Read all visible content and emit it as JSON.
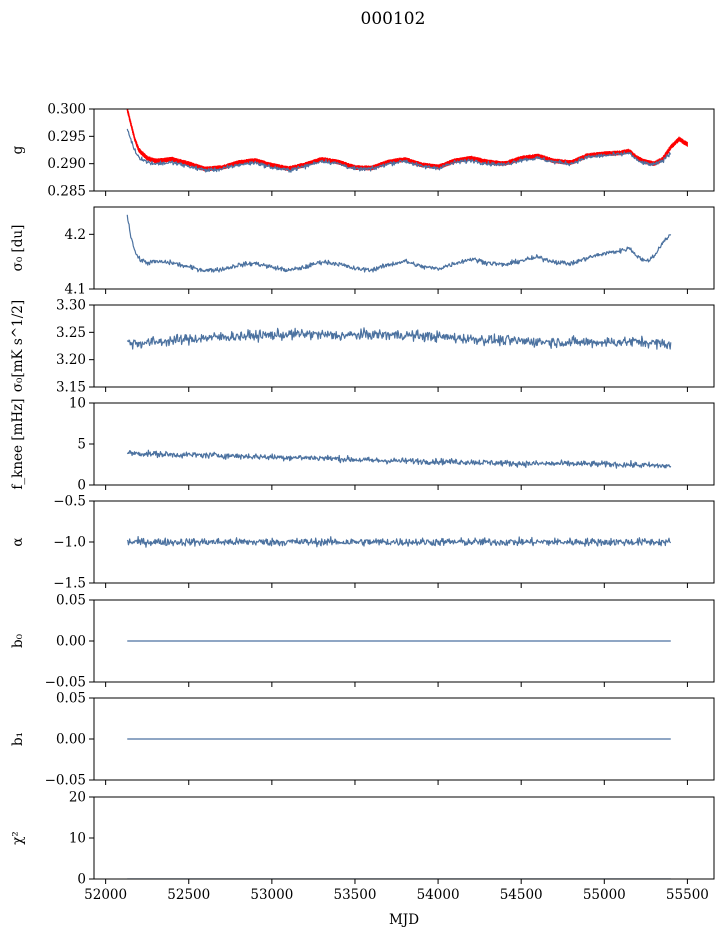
{
  "figure": {
    "title": "000102",
    "xlabel": "MJD",
    "colors": {
      "series": "#4c72a0",
      "raw": "#ff0000",
      "axes": "#000000"
    }
  },
  "chart_data": [
    {
      "type": "line",
      "ylabel": "g",
      "xlim": [
        51930,
        55660
      ],
      "ylim": [
        0.285,
        0.3
      ],
      "yticks": [
        "0.285",
        "0.290",
        "0.295",
        "0.300"
      ],
      "grid": false,
      "series": [
        {
          "color": "#ff0000",
          "style": "band",
          "x": [
            52130,
            52150,
            52175,
            52200,
            52250,
            52300,
            52400,
            52500,
            52600,
            52700,
            52800,
            52900,
            53000,
            53100,
            53200,
            53300,
            53400,
            53500,
            53600,
            53700,
            53800,
            53900,
            54000,
            54100,
            54200,
            54300,
            54400,
            54500,
            54600,
            54700,
            54800,
            54900,
            55000,
            55100,
            55150,
            55200,
            55250,
            55300,
            55350,
            55400,
            55450,
            55500
          ],
          "y": [
            0.3,
            0.2975,
            0.2945,
            0.2925,
            0.291,
            0.2905,
            0.2908,
            0.29,
            0.289,
            0.2893,
            0.2902,
            0.2906,
            0.2897,
            0.2891,
            0.2898,
            0.2908,
            0.2903,
            0.2893,
            0.2892,
            0.2903,
            0.2908,
            0.2898,
            0.2894,
            0.2905,
            0.291,
            0.2903,
            0.29,
            0.291,
            0.2914,
            0.2905,
            0.2902,
            0.2915,
            0.2918,
            0.292,
            0.2923,
            0.291,
            0.2903,
            0.29,
            0.2908,
            0.293,
            0.2945,
            0.2935
          ]
        },
        {
          "color": "#4c72a0",
          "style": "noisy",
          "noise": 0.00035,
          "x": [
            52130,
            52150,
            52175,
            52200,
            52250,
            52300,
            52400,
            52500,
            52600,
            52700,
            52800,
            52900,
            53000,
            53100,
            53200,
            53300,
            53400,
            53500,
            53600,
            53700,
            53800,
            53900,
            54000,
            54100,
            54200,
            54300,
            54400,
            54500,
            54600,
            54700,
            54800,
            54900,
            55000,
            55100,
            55150,
            55200,
            55250,
            55300,
            55350,
            55400
          ],
          "y": [
            0.2965,
            0.2945,
            0.2925,
            0.2912,
            0.2903,
            0.29,
            0.2902,
            0.2895,
            0.2888,
            0.289,
            0.2898,
            0.2902,
            0.2893,
            0.2888,
            0.2895,
            0.2905,
            0.29,
            0.289,
            0.289,
            0.29,
            0.2905,
            0.2895,
            0.2892,
            0.2902,
            0.2906,
            0.29,
            0.2898,
            0.2907,
            0.291,
            0.2903,
            0.29,
            0.2912,
            0.2915,
            0.2917,
            0.292,
            0.2905,
            0.29,
            0.2898,
            0.2905,
            0.292
          ]
        }
      ]
    },
    {
      "type": "line",
      "ylabel": "σ₀ [du]",
      "xlim": [
        51930,
        55660
      ],
      "ylim": [
        4.1,
        4.25
      ],
      "yticks": [
        "4.1",
        "4.2"
      ],
      "grid": false,
      "series": [
        {
          "color": "#4c72a0",
          "style": "noisy",
          "noise": 0.004,
          "x": [
            52130,
            52150,
            52175,
            52200,
            52250,
            52300,
            52400,
            52500,
            52600,
            52700,
            52800,
            52900,
            53000,
            53100,
            53200,
            53300,
            53400,
            53500,
            53600,
            53700,
            53800,
            53900,
            54000,
            54100,
            54200,
            54300,
            54400,
            54500,
            54600,
            54700,
            54800,
            54900,
            55000,
            55100,
            55150,
            55200,
            55250,
            55300,
            55350,
            55400
          ],
          "y": [
            4.235,
            4.2,
            4.17,
            4.155,
            4.148,
            4.15,
            4.148,
            4.14,
            4.134,
            4.136,
            4.144,
            4.147,
            4.14,
            4.134,
            4.14,
            4.15,
            4.146,
            4.137,
            4.135,
            4.144,
            4.151,
            4.141,
            4.137,
            4.147,
            4.155,
            4.148,
            4.144,
            4.152,
            4.158,
            4.15,
            4.146,
            4.157,
            4.165,
            4.17,
            4.175,
            4.16,
            4.15,
            4.16,
            4.185,
            4.2
          ]
        }
      ]
    },
    {
      "type": "line",
      "ylabel": "σ₀[mK s^1/2]",
      "xlim": [
        51930,
        55660
      ],
      "ylim": [
        3.15,
        3.3
      ],
      "yticks": [
        "3.15",
        "3.20",
        "3.25",
        "3.30"
      ],
      "grid": false,
      "series": [
        {
          "color": "#4c72a0",
          "style": "noisy",
          "noise": 0.009,
          "x": [
            52130,
            52200,
            52400,
            52600,
            52800,
            53000,
            53200,
            53400,
            53600,
            53800,
            54000,
            54200,
            54400,
            54600,
            54800,
            55000,
            55200,
            55400
          ],
          "y": [
            3.232,
            3.23,
            3.235,
            3.24,
            3.243,
            3.245,
            3.247,
            3.244,
            3.246,
            3.245,
            3.242,
            3.238,
            3.235,
            3.233,
            3.232,
            3.232,
            3.233,
            3.228
          ]
        }
      ]
    },
    {
      "type": "line",
      "ylabel": "f_knee [mHz]",
      "xlim": [
        51930,
        55660
      ],
      "ylim": [
        0,
        10
      ],
      "yticks": [
        "0",
        "5",
        "10"
      ],
      "grid": false,
      "series": [
        {
          "color": "#4c72a0",
          "style": "noisy",
          "noise": 0.35,
          "x": [
            52130,
            52400,
            52700,
            53000,
            53300,
            53600,
            53900,
            54200,
            54500,
            54800,
            55100,
            55400
          ],
          "y": [
            3.9,
            3.7,
            3.6,
            3.4,
            3.3,
            3.0,
            2.9,
            2.8,
            2.6,
            2.6,
            2.5,
            2.3
          ]
        }
      ]
    },
    {
      "type": "line",
      "ylabel": "α",
      "xlim": [
        51930,
        55660
      ],
      "ylim": [
        -1.5,
        -0.5
      ],
      "yticks": [
        "−1.5",
        "−1.0",
        "−0.5"
      ],
      "grid": false,
      "series": [
        {
          "color": "#4c72a0",
          "style": "noisy",
          "noise": 0.045,
          "x": [
            52130,
            55400
          ],
          "y": [
            -1.0,
            -1.0
          ]
        }
      ]
    },
    {
      "type": "line",
      "ylabel": "b₀",
      "xlim": [
        51930,
        55660
      ],
      "ylim": [
        -0.055,
        0.055
      ],
      "yticks": [
        "−0.05",
        "0.00",
        "0.05"
      ],
      "grid": false,
      "series": [
        {
          "color": "#4c72a0",
          "style": "flat",
          "x": [
            52130,
            55400
          ],
          "y": [
            0.0,
            0.0
          ]
        }
      ]
    },
    {
      "type": "line",
      "ylabel": "b₁",
      "xlim": [
        51930,
        55660
      ],
      "ylim": [
        -0.055,
        0.055
      ],
      "yticks": [
        "−0.05",
        "0.00",
        "0.05"
      ],
      "grid": false,
      "series": [
        {
          "color": "#4c72a0",
          "style": "flat",
          "x": [
            52130,
            55400
          ],
          "y": [
            0.0,
            0.0
          ]
        }
      ]
    },
    {
      "type": "line",
      "ylabel": "χ²",
      "xlim": [
        51930,
        55660
      ],
      "ylim": [
        0,
        20
      ],
      "yticks": [
        "0",
        "10",
        "20"
      ],
      "xticks": [
        "52000",
        "52500",
        "53000",
        "53500",
        "54000",
        "54500",
        "55000",
        "55500"
      ],
      "grid": false,
      "series": [
        {
          "color": "#4c72a0",
          "style": "flat",
          "x": [
            52130,
            55400
          ],
          "y": [
            0.0,
            0.0
          ]
        }
      ]
    }
  ]
}
